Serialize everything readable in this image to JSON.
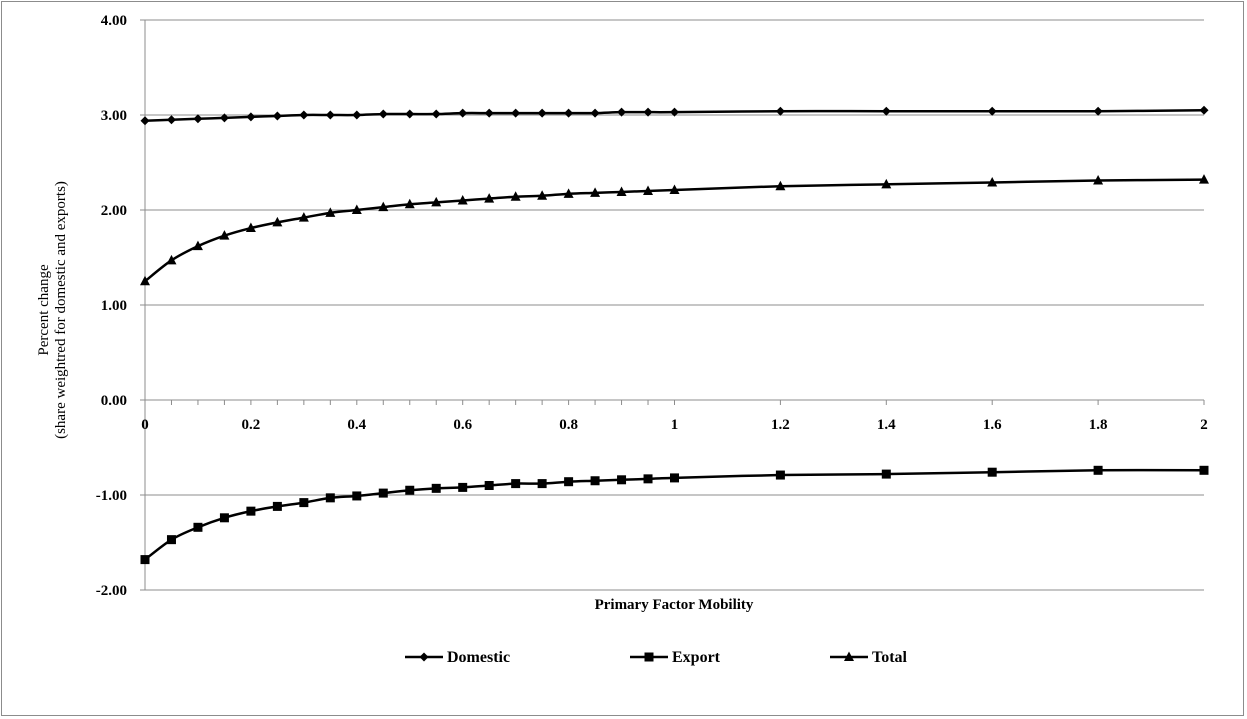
{
  "chart_data": {
    "type": "line",
    "title": "",
    "xlabel": "Primary Factor Mobility",
    "ylabel_lines": [
      "Percent change",
      "(share weightred for domestic and exports)"
    ],
    "ylim": [
      -2,
      4
    ],
    "y_ticks": [
      4,
      3,
      2,
      1,
      0,
      -1,
      -2
    ],
    "y_tick_labels": [
      "4.00",
      "3.00",
      "2.00",
      "1.00",
      "0.00",
      "-1.00",
      "-2.00"
    ],
    "x": [
      0,
      0.05,
      0.1,
      0.15,
      0.2,
      0.25,
      0.3,
      0.35,
      0.4,
      0.45,
      0.5,
      0.55,
      0.6,
      0.65,
      0.7,
      0.75,
      0.8,
      0.85,
      0.9,
      0.95,
      1,
      1.2,
      1.4,
      1.6,
      1.8,
      2
    ],
    "x_tick_labels": [
      "0",
      "0.2",
      "0.4",
      "0.6",
      "0.8",
      "1",
      "1.2",
      "1.4",
      "1.6",
      "1.8",
      "2"
    ],
    "gridlines": "horizontal",
    "legend_position": "bottom",
    "series": [
      {
        "name": "Domestic",
        "marker": "diamond",
        "values": [
          2.94,
          2.95,
          2.96,
          2.97,
          2.98,
          2.99,
          3.0,
          3.0,
          3.0,
          3.01,
          3.01,
          3.01,
          3.02,
          3.02,
          3.02,
          3.02,
          3.02,
          3.02,
          3.03,
          3.03,
          3.03,
          3.04,
          3.04,
          3.04,
          3.04,
          3.05
        ]
      },
      {
        "name": "Export",
        "marker": "square",
        "values": [
          -1.68,
          -1.47,
          -1.34,
          -1.24,
          -1.17,
          -1.12,
          -1.08,
          -1.03,
          -1.01,
          -0.98,
          -0.95,
          -0.93,
          -0.92,
          -0.9,
          -0.88,
          -0.88,
          -0.86,
          -0.85,
          -0.84,
          -0.83,
          -0.82,
          -0.79,
          -0.78,
          -0.76,
          -0.74,
          -0.74
        ]
      },
      {
        "name": "Total",
        "marker": "triangle",
        "values": [
          1.25,
          1.47,
          1.62,
          1.73,
          1.81,
          1.87,
          1.92,
          1.97,
          2.0,
          2.03,
          2.06,
          2.08,
          2.1,
          2.12,
          2.14,
          2.15,
          2.17,
          2.18,
          2.19,
          2.2,
          2.21,
          2.25,
          2.27,
          2.29,
          2.31,
          2.32
        ]
      }
    ]
  }
}
